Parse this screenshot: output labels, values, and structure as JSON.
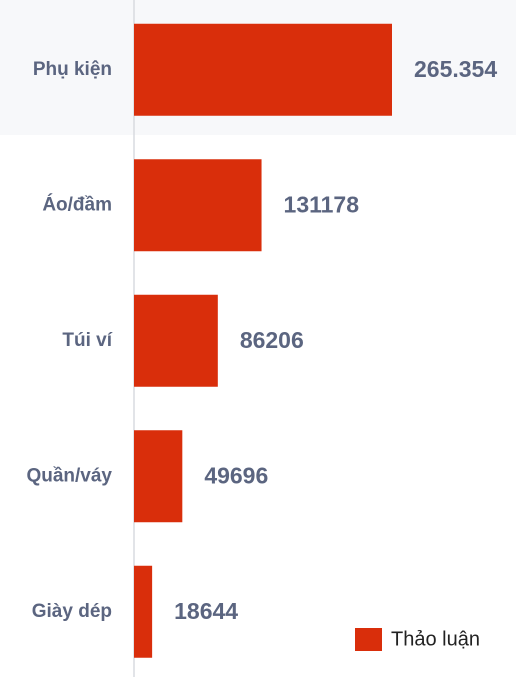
{
  "chart_data": {
    "type": "hbar",
    "categories": [
      "Phụ kiện",
      "Áo/đầm",
      "Túi ví",
      "Quần/váy",
      "Giày dép"
    ],
    "series": [
      {
        "name": "Thảo luận",
        "color": "#d92e0b",
        "values": [
          265354,
          131178,
          86206,
          49696,
          18644
        ],
        "value_labels": [
          "265.354",
          "131178",
          "86206",
          "49696",
          "18644"
        ]
      }
    ],
    "legend": "bottom-right"
  }
}
